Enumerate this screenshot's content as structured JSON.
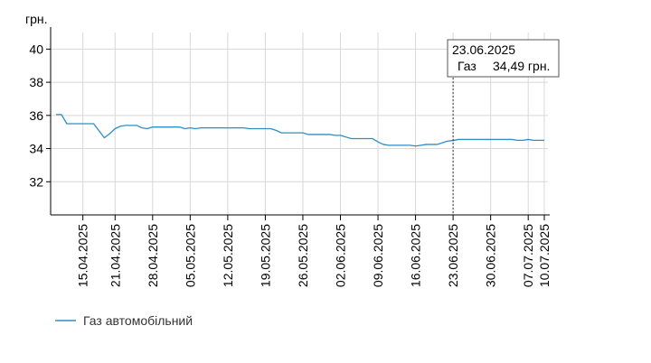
{
  "chart_data": {
    "type": "line",
    "title": "",
    "ylabel": "грн.",
    "xlabel": "",
    "ylim": [
      30,
      41
    ],
    "yticks": [
      32,
      34,
      36,
      38,
      40
    ],
    "ytick_labels": [
      "32",
      "34",
      "36",
      "38",
      "40"
    ],
    "grid": "horizontal",
    "legend_position": "bottom-left",
    "xtick_labels": [
      "15.04.2025",
      "21.04.2025",
      "28.04.2025",
      "05.05.2025",
      "12.05.2025",
      "19.05.2025",
      "26.05.2025",
      "02.06.2025",
      "09.06.2025",
      "16.06.2025",
      "23.06.2025",
      "30.06.2025",
      "07.07.2025",
      "10.07.2025"
    ],
    "series": [
      {
        "name": "Газ автомобільний",
        "color": "#2e8ec4",
        "points": [
          [
            "2025-04-10",
            36.05
          ],
          [
            "2025-04-11",
            36.05
          ],
          [
            "2025-04-12",
            35.5
          ],
          [
            "2025-04-14",
            35.5
          ],
          [
            "2025-04-15",
            35.5
          ],
          [
            "2025-04-17",
            35.5
          ],
          [
            "2025-04-19",
            34.65
          ],
          [
            "2025-04-20",
            34.9
          ],
          [
            "2025-04-21",
            35.2
          ],
          [
            "2025-04-22",
            35.35
          ],
          [
            "2025-04-23",
            35.4
          ],
          [
            "2025-04-25",
            35.4
          ],
          [
            "2025-04-26",
            35.25
          ],
          [
            "2025-04-27",
            35.2
          ],
          [
            "2025-04-28",
            35.3
          ],
          [
            "2025-05-03",
            35.3
          ],
          [
            "2025-05-04",
            35.2
          ],
          [
            "2025-05-05",
            35.25
          ],
          [
            "2025-05-06",
            35.2
          ],
          [
            "2025-05-07",
            35.25
          ],
          [
            "2025-05-15",
            35.25
          ],
          [
            "2025-05-16",
            35.2
          ],
          [
            "2025-05-20",
            35.2
          ],
          [
            "2025-05-21",
            35.1
          ],
          [
            "2025-05-22",
            34.95
          ],
          [
            "2025-05-26",
            34.95
          ],
          [
            "2025-05-27",
            34.85
          ],
          [
            "2025-05-31",
            34.85
          ],
          [
            "2025-06-01",
            34.8
          ],
          [
            "2025-06-02",
            34.8
          ],
          [
            "2025-06-03",
            34.7
          ],
          [
            "2025-06-04",
            34.6
          ],
          [
            "2025-06-08",
            34.6
          ],
          [
            "2025-06-09",
            34.4
          ],
          [
            "2025-06-10",
            34.25
          ],
          [
            "2025-06-11",
            34.2
          ],
          [
            "2025-06-15",
            34.2
          ],
          [
            "2025-06-16",
            34.15
          ],
          [
            "2025-06-17",
            34.2
          ],
          [
            "2025-06-18",
            34.25
          ],
          [
            "2025-06-20",
            34.25
          ],
          [
            "2025-06-21",
            34.35
          ],
          [
            "2025-06-22",
            34.45
          ],
          [
            "2025-06-23",
            34.49
          ],
          [
            "2025-06-24",
            34.55
          ],
          [
            "2025-07-04",
            34.55
          ],
          [
            "2025-07-05",
            34.5
          ],
          [
            "2025-07-06",
            34.5
          ],
          [
            "2025-07-07",
            34.55
          ],
          [
            "2025-07-08",
            34.5
          ],
          [
            "2025-07-10",
            34.5
          ]
        ]
      }
    ],
    "tooltip": {
      "date": "23.06.2025",
      "series_label": "Газ",
      "value_text": "34,49 грн.",
      "x": "2025-06-23"
    }
  }
}
